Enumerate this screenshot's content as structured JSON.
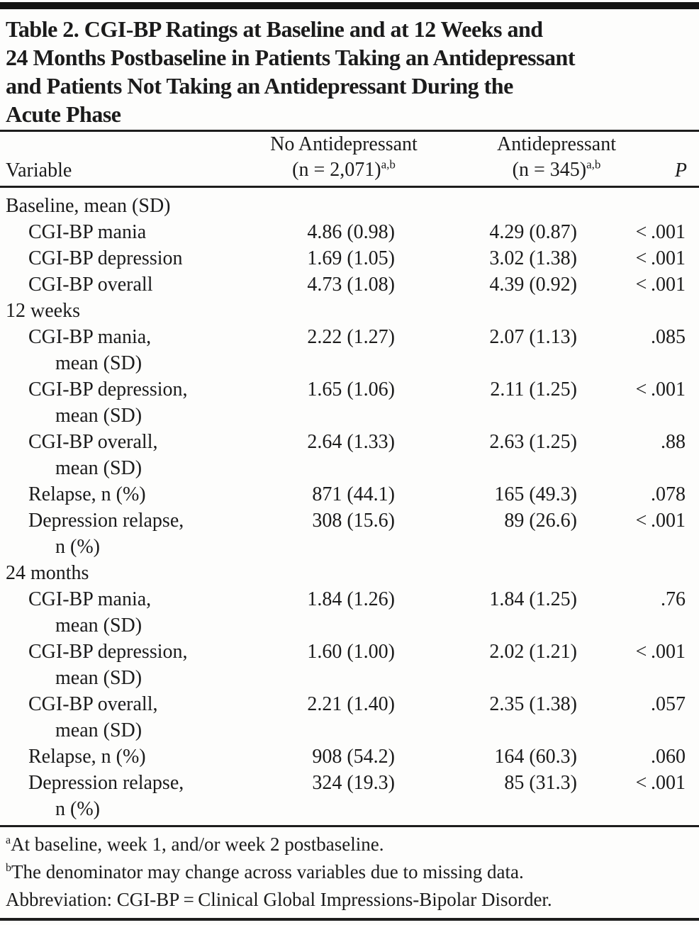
{
  "colors": {
    "text": "#1b1b1b",
    "rule": "#1d1d1d",
    "background": "#fdfdfc"
  },
  "table": {
    "title_lines": [
      "Table 2. CGI-BP Ratings at Baseline and at 12 Weeks and",
      "24 Months Postbaseline in Patients Taking an Antidepressant",
      "and Patients Not Taking an Antidepressant During the",
      "Acute Phase"
    ],
    "header": {
      "variable": "Variable",
      "no_antidepressant_line1": "No Antidepressant",
      "no_antidepressant_line2": "(n = 2,071)",
      "no_antidepressant_sup": "a,b",
      "antidepressant_line1": "Antidepressant",
      "antidepressant_line2": "(n = 345)",
      "antidepressant_sup": "a,b",
      "p": "P"
    },
    "rows": [
      {
        "type": "section",
        "label": "Baseline, mean (SD)"
      },
      {
        "type": "data",
        "label": "CGI-BP mania",
        "no_ad": "4.86 (0.98)",
        "ad": "4.29 (0.87)",
        "p": "< .001"
      },
      {
        "type": "data",
        "label": "CGI-BP depression",
        "no_ad": "1.69 (1.05)",
        "ad": "3.02 (1.38)",
        "p": "< .001"
      },
      {
        "type": "data",
        "label": "CGI-BP overall",
        "no_ad": "4.73 (1.08)",
        "ad": "4.39 (0.92)",
        "p": "< .001"
      },
      {
        "type": "section",
        "label": "12 weeks"
      },
      {
        "type": "data",
        "label": "CGI-BP mania,",
        "label2": "mean (SD)",
        "no_ad": "2.22 (1.27)",
        "ad": "2.07 (1.13)",
        "p": ".085"
      },
      {
        "type": "data",
        "label": "CGI-BP depression,",
        "label2": "mean (SD)",
        "no_ad": "1.65 (1.06)",
        "ad": "2.11 (1.25)",
        "p": "< .001"
      },
      {
        "type": "data",
        "label": "CGI-BP overall,",
        "label2": "mean (SD)",
        "no_ad": "2.64 (1.33)",
        "ad": "2.63 (1.25)",
        "p": ".88"
      },
      {
        "type": "data",
        "label": "Relapse, n (%)",
        "no_ad": "871 (44.1)",
        "ad": "165 (49.3)",
        "p": ".078"
      },
      {
        "type": "data",
        "label": "Depression relapse,",
        "label2": "n (%)",
        "no_ad": "308 (15.6)",
        "ad": "89 (26.6)",
        "p": "< .001"
      },
      {
        "type": "section",
        "label": "24 months"
      },
      {
        "type": "data",
        "label": "CGI-BP mania,",
        "label2": "mean (SD)",
        "no_ad": "1.84 (1.26)",
        "ad": "1.84 (1.25)",
        "p": ".76"
      },
      {
        "type": "data",
        "label": "CGI-BP depression,",
        "label2": "mean (SD)",
        "no_ad": "1.60 (1.00)",
        "ad": "2.02 (1.21)",
        "p": "< .001"
      },
      {
        "type": "data",
        "label": "CGI-BP overall,",
        "label2": "mean (SD)",
        "no_ad": "2.21 (1.40)",
        "ad": "2.35 (1.38)",
        "p": ".057"
      },
      {
        "type": "data",
        "label": "Relapse, n (%)",
        "no_ad": "908 (54.2)",
        "ad": "164 (60.3)",
        "p": ".060"
      },
      {
        "type": "data",
        "label": "Depression relapse,",
        "label2": "n (%)",
        "no_ad": "324 (19.3)",
        "ad": "85 (31.3)",
        "p": "< .001"
      }
    ],
    "footnotes": [
      {
        "sup": "a",
        "text": "At baseline, week 1, and/or week 2 postbaseline."
      },
      {
        "sup": "b",
        "text": "The denominator may change across variables due to missing data."
      },
      {
        "sup": "",
        "text": "Abbreviation: CGI-BP = Clinical Global Impressions-Bipolar Disorder."
      }
    ]
  }
}
